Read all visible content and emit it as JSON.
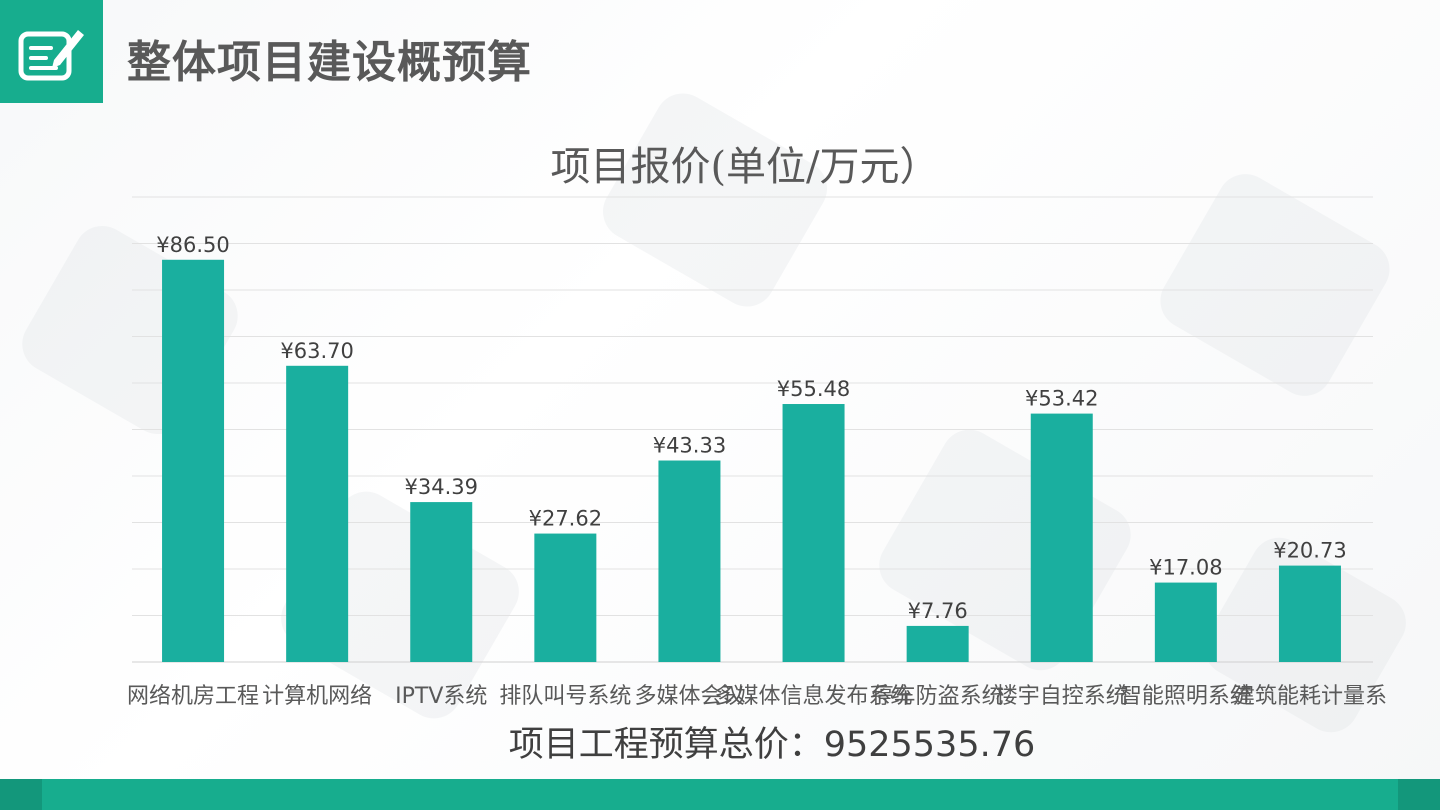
{
  "header": {
    "title": "整体项目建设概预算",
    "logo_icon": "document-edit-icon"
  },
  "chart_data": {
    "type": "bar",
    "title": "项目报价(单位/万元）",
    "categories": [
      "网络机房工程",
      "计算机网络",
      "IPTV系统",
      "排队叫号系统",
      "多媒体会议",
      "多媒体信息发布系统",
      "停车防盗系统",
      "楼宇自控系统",
      "智能照明系统",
      "建筑能耗计量系"
    ],
    "values": [
      86.5,
      63.7,
      34.39,
      27.62,
      43.33,
      55.48,
      7.76,
      53.42,
      17.08,
      20.73
    ],
    "data_labels": [
      "¥86.50",
      "¥63.70",
      "¥34.39",
      "¥27.62",
      "¥43.33",
      "¥55.48",
      "¥7.76",
      "¥53.42",
      "¥17.08",
      "¥20.73"
    ],
    "ylim": [
      0,
      100
    ],
    "gridlines": true,
    "bar_color": "#1aaf9f"
  },
  "footer": {
    "total_text": "项目工程预算总价：9525535.76"
  },
  "colors": {
    "accent": "#17ad8e",
    "bar": "#1aaf9f",
    "title_text": "#595959"
  }
}
